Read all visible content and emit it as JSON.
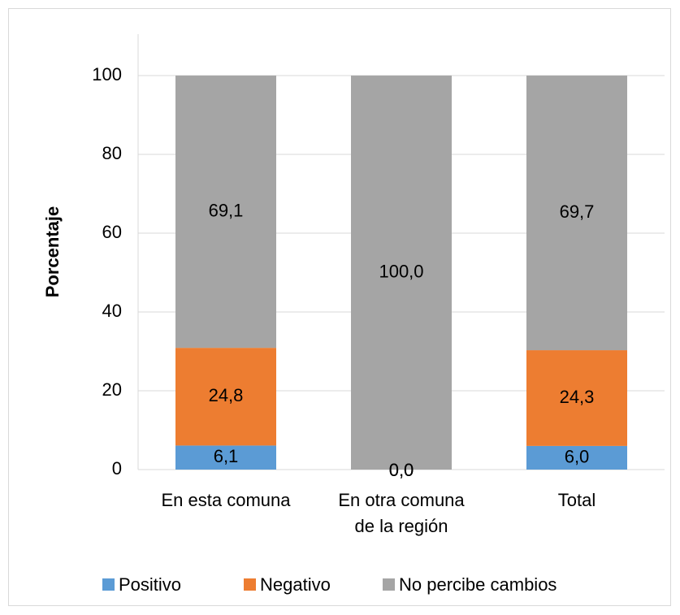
{
  "chart_data": {
    "type": "stacked_bar",
    "y_label": "Porcentaje",
    "categories": [
      "En esta comuna",
      "En otra comuna de la región",
      "Total"
    ],
    "series": [
      {
        "name": "Positivo",
        "color": "#5b9bd5",
        "values": [
          6.1,
          0.0,
          6.0
        ],
        "value_labels": [
          "6,1",
          "0,0",
          "6,0"
        ]
      },
      {
        "name": "Negativo",
        "color": "#ed7d31",
        "values": [
          24.8,
          0.0,
          24.3
        ],
        "value_labels": [
          "24,8",
          "0,0",
          "24,3"
        ]
      },
      {
        "name": "No percibe cambios",
        "color": "#a5a5a5",
        "values": [
          69.1,
          100.0,
          69.7
        ],
        "value_labels": [
          "69,1",
          "100,0",
          "69,7"
        ]
      }
    ],
    "ylim": [
      0,
      113
    ],
    "yticks": [
      0,
      20,
      40,
      60,
      80,
      100
    ],
    "grid": true,
    "legend": "bottom"
  }
}
